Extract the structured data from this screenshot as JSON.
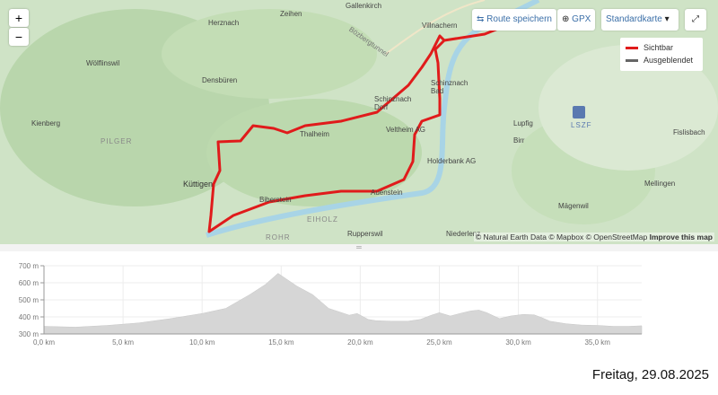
{
  "map": {
    "zoom_in": "+",
    "zoom_out": "−",
    "save_route": "Route speichern",
    "gpx": "GPX",
    "map_style": "Standardkarte",
    "legend": [
      {
        "label": "Sichtbar",
        "color": "#e01b1b"
      },
      {
        "label": "Ausgeblendet",
        "color": "#666666"
      }
    ],
    "attribution": [
      "© Natural Earth Data",
      "© Mapbox",
      "© OpenStreetMap"
    ],
    "improve": "Improve this map",
    "places": [
      "Herznach",
      "Zeihen",
      "Gallenkirch",
      "Villnachern",
      "Wölflinswil",
      "Densbüren",
      "Bözbergtunnel",
      "Schinznach Dorf",
      "Schinznach Bad",
      "Kienberg",
      "PILGER",
      "Thalheim",
      "Veltheim AG",
      "Lupfig",
      "LSZF",
      "Birr",
      "Fislisbach",
      "Küttigen",
      "Holderbank AG",
      "Mellingen",
      "Biberstein",
      "Auenstein",
      "EIHOLZ",
      "Mägenwil",
      "ROHR",
      "Rupperswil",
      "Niederlenz"
    ]
  },
  "route_color": "#e01b1b",
  "chart_data": {
    "type": "area",
    "title": "",
    "xlabel": "",
    "ylabel": "",
    "xlim": [
      0,
      37.8
    ],
    "ylim": [
      300,
      700
    ],
    "x_ticks": [
      "0,0 km",
      "5,0 km",
      "10,0 km",
      "15,0 km",
      "20,0 km",
      "25,0 km",
      "30,0 km",
      "35,0 km"
    ],
    "y_ticks": [
      "300 m",
      "400 m",
      "500 m",
      "600 m",
      "700 m"
    ],
    "grid": true,
    "fill_color": "#d6d6d6",
    "x": [
      0,
      2,
      4,
      6,
      8,
      10,
      11.5,
      13,
      14,
      14.8,
      16,
      17,
      18,
      19.3,
      19.8,
      20.5,
      21,
      22,
      23,
      23.8,
      24.5,
      25,
      25.7,
      26.3,
      27,
      27.5,
      28,
      28.8,
      29.5,
      30.3,
      31,
      31.5,
      32,
      33,
      34,
      35,
      36,
      37,
      37.8
    ],
    "y": [
      345,
      340,
      350,
      365,
      390,
      420,
      450,
      530,
      590,
      655,
      580,
      530,
      450,
      410,
      420,
      385,
      378,
      375,
      375,
      385,
      410,
      425,
      405,
      420,
      435,
      440,
      425,
      390,
      405,
      415,
      412,
      395,
      375,
      360,
      352,
      350,
      345,
      345,
      348
    ]
  },
  "footer": {
    "date": "Freitag, 29.08.2025"
  }
}
